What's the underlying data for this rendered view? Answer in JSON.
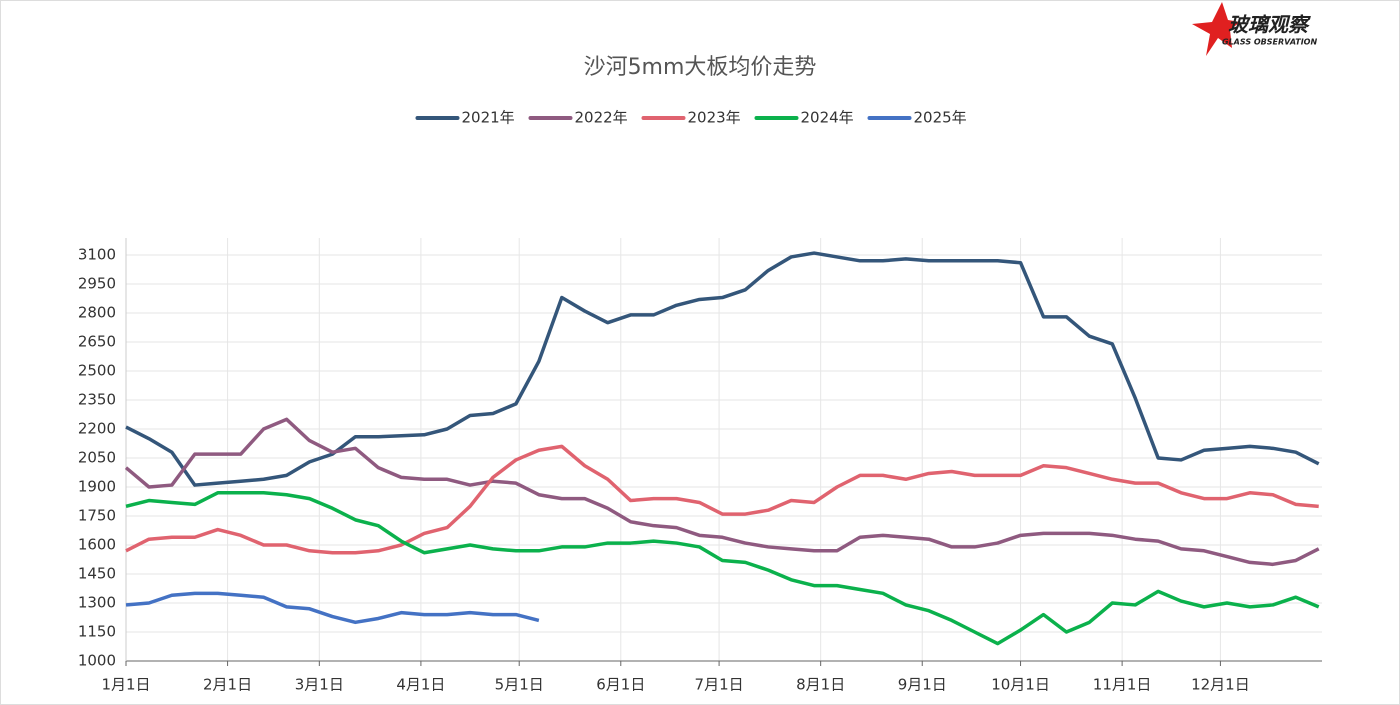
{
  "logo": {
    "name": "玻璃观察",
    "subtitle": "GLASS OBSERVATION"
  },
  "chart_data": {
    "type": "line",
    "title": "沙河5mm大板均价走势",
    "grid": true,
    "legend": "top",
    "x": [
      0,
      7,
      14,
      21,
      28,
      35,
      42,
      49,
      56,
      63,
      70,
      77,
      84,
      91,
      98,
      105,
      112,
      119,
      126,
      133,
      140,
      147,
      154,
      161,
      168,
      175,
      182,
      189,
      196,
      203,
      210,
      217,
      224,
      231,
      238,
      245,
      252,
      259,
      266,
      273,
      280,
      287,
      294,
      301,
      308,
      315,
      322,
      329,
      336,
      343,
      350,
      357,
      364
    ],
    "xlim": [
      0,
      365
    ],
    "xticks": [
      {
        "value": 0,
        "label": "1月1日"
      },
      {
        "value": 31,
        "label": "2月1日"
      },
      {
        "value": 59,
        "label": "3月1日"
      },
      {
        "value": 90,
        "label": "4月1日"
      },
      {
        "value": 120,
        "label": "5月1日"
      },
      {
        "value": 151,
        "label": "6月1日"
      },
      {
        "value": 181,
        "label": "7月1日"
      },
      {
        "value": 212,
        "label": "8月1日"
      },
      {
        "value": 243,
        "label": "9月1日"
      },
      {
        "value": 273,
        "label": "10月1日"
      },
      {
        "value": 304,
        "label": "11月1日"
      },
      {
        "value": 334,
        "label": "12月1日"
      }
    ],
    "ylim": [
      1000,
      3100
    ],
    "yticks": [
      1000,
      1150,
      1300,
      1450,
      1600,
      1750,
      1900,
      2050,
      2200,
      2350,
      2500,
      2650,
      2800,
      2950,
      3100
    ],
    "series": [
      {
        "name": "2021年",
        "color": "#34567a",
        "values": [
          2210,
          2150,
          2080,
          1910,
          1920,
          1930,
          1940,
          1960,
          2030,
          2070,
          2160,
          2160,
          2165,
          2170,
          2200,
          2270,
          2280,
          2330,
          2550,
          2880,
          2810,
          2750,
          2790,
          2790,
          2840,
          2870,
          2880,
          2920,
          3020,
          3090,
          3110,
          3090,
          3070,
          3070,
          3080,
          3070,
          3070,
          3070,
          3070,
          3060,
          2780,
          2780,
          2680,
          2640,
          2360,
          2050,
          2040,
          2090,
          2100,
          2110,
          2100,
          2080,
          2020
        ]
      },
      {
        "name": "2022年",
        "color": "#8f5a80",
        "values": [
          2000,
          1900,
          1910,
          2070,
          2070,
          2070,
          2200,
          2250,
          2140,
          2080,
          2100,
          2000,
          1950,
          1940,
          1940,
          1910,
          1930,
          1920,
          1860,
          1840,
          1840,
          1790,
          1720,
          1700,
          1690,
          1650,
          1640,
          1610,
          1590,
          1580,
          1570,
          1570,
          1640,
          1650,
          1640,
          1630,
          1590,
          1590,
          1610,
          1650,
          1660,
          1660,
          1660,
          1650,
          1630,
          1620,
          1580,
          1570,
          1540,
          1510,
          1500,
          1520,
          1580
        ]
      },
      {
        "name": "2023年",
        "color": "#e0636f",
        "values": [
          1570,
          1630,
          1640,
          1640,
          1680,
          1650,
          1600,
          1600,
          1570,
          1560,
          1560,
          1570,
          1600,
          1660,
          1690,
          1800,
          1950,
          2040,
          2090,
          2110,
          2010,
          1940,
          1830,
          1840,
          1840,
          1820,
          1760,
          1760,
          1780,
          1830,
          1820,
          1900,
          1960,
          1960,
          1940,
          1970,
          1980,
          1960,
          1960,
          1960,
          2010,
          2000,
          1970,
          1940,
          1920,
          1920,
          1870,
          1840,
          1840,
          1870,
          1860,
          1810,
          1800
        ]
      },
      {
        "name": "2024年",
        "color": "#0bb14c",
        "values": [
          1800,
          1830,
          1820,
          1810,
          1870,
          1870,
          1870,
          1860,
          1840,
          1790,
          1730,
          1700,
          1620,
          1560,
          1580,
          1600,
          1580,
          1570,
          1570,
          1590,
          1590,
          1610,
          1610,
          1620,
          1610,
          1590,
          1520,
          1510,
          1470,
          1420,
          1390,
          1390,
          1370,
          1350,
          1290,
          1260,
          1210,
          1150,
          1090,
          1160,
          1240,
          1150,
          1200,
          1300,
          1290,
          1360,
          1310,
          1280,
          1300,
          1280,
          1290,
          1330,
          1280
        ]
      },
      {
        "name": "2025年",
        "color": "#4472c4",
        "values": [
          1290,
          1300,
          1340,
          1350,
          1350,
          1340,
          1330,
          1280,
          1270,
          1230,
          1200,
          1220,
          1250,
          1240,
          1240,
          1250,
          1240,
          1240,
          1210,
          null,
          null,
          null,
          null,
          null,
          null,
          null,
          null,
          null,
          null,
          null,
          null,
          null,
          null,
          null,
          null,
          null,
          null,
          null,
          null,
          null,
          null,
          null,
          null,
          null,
          null,
          null,
          null,
          null,
          null,
          null,
          null,
          null,
          null
        ]
      }
    ]
  }
}
